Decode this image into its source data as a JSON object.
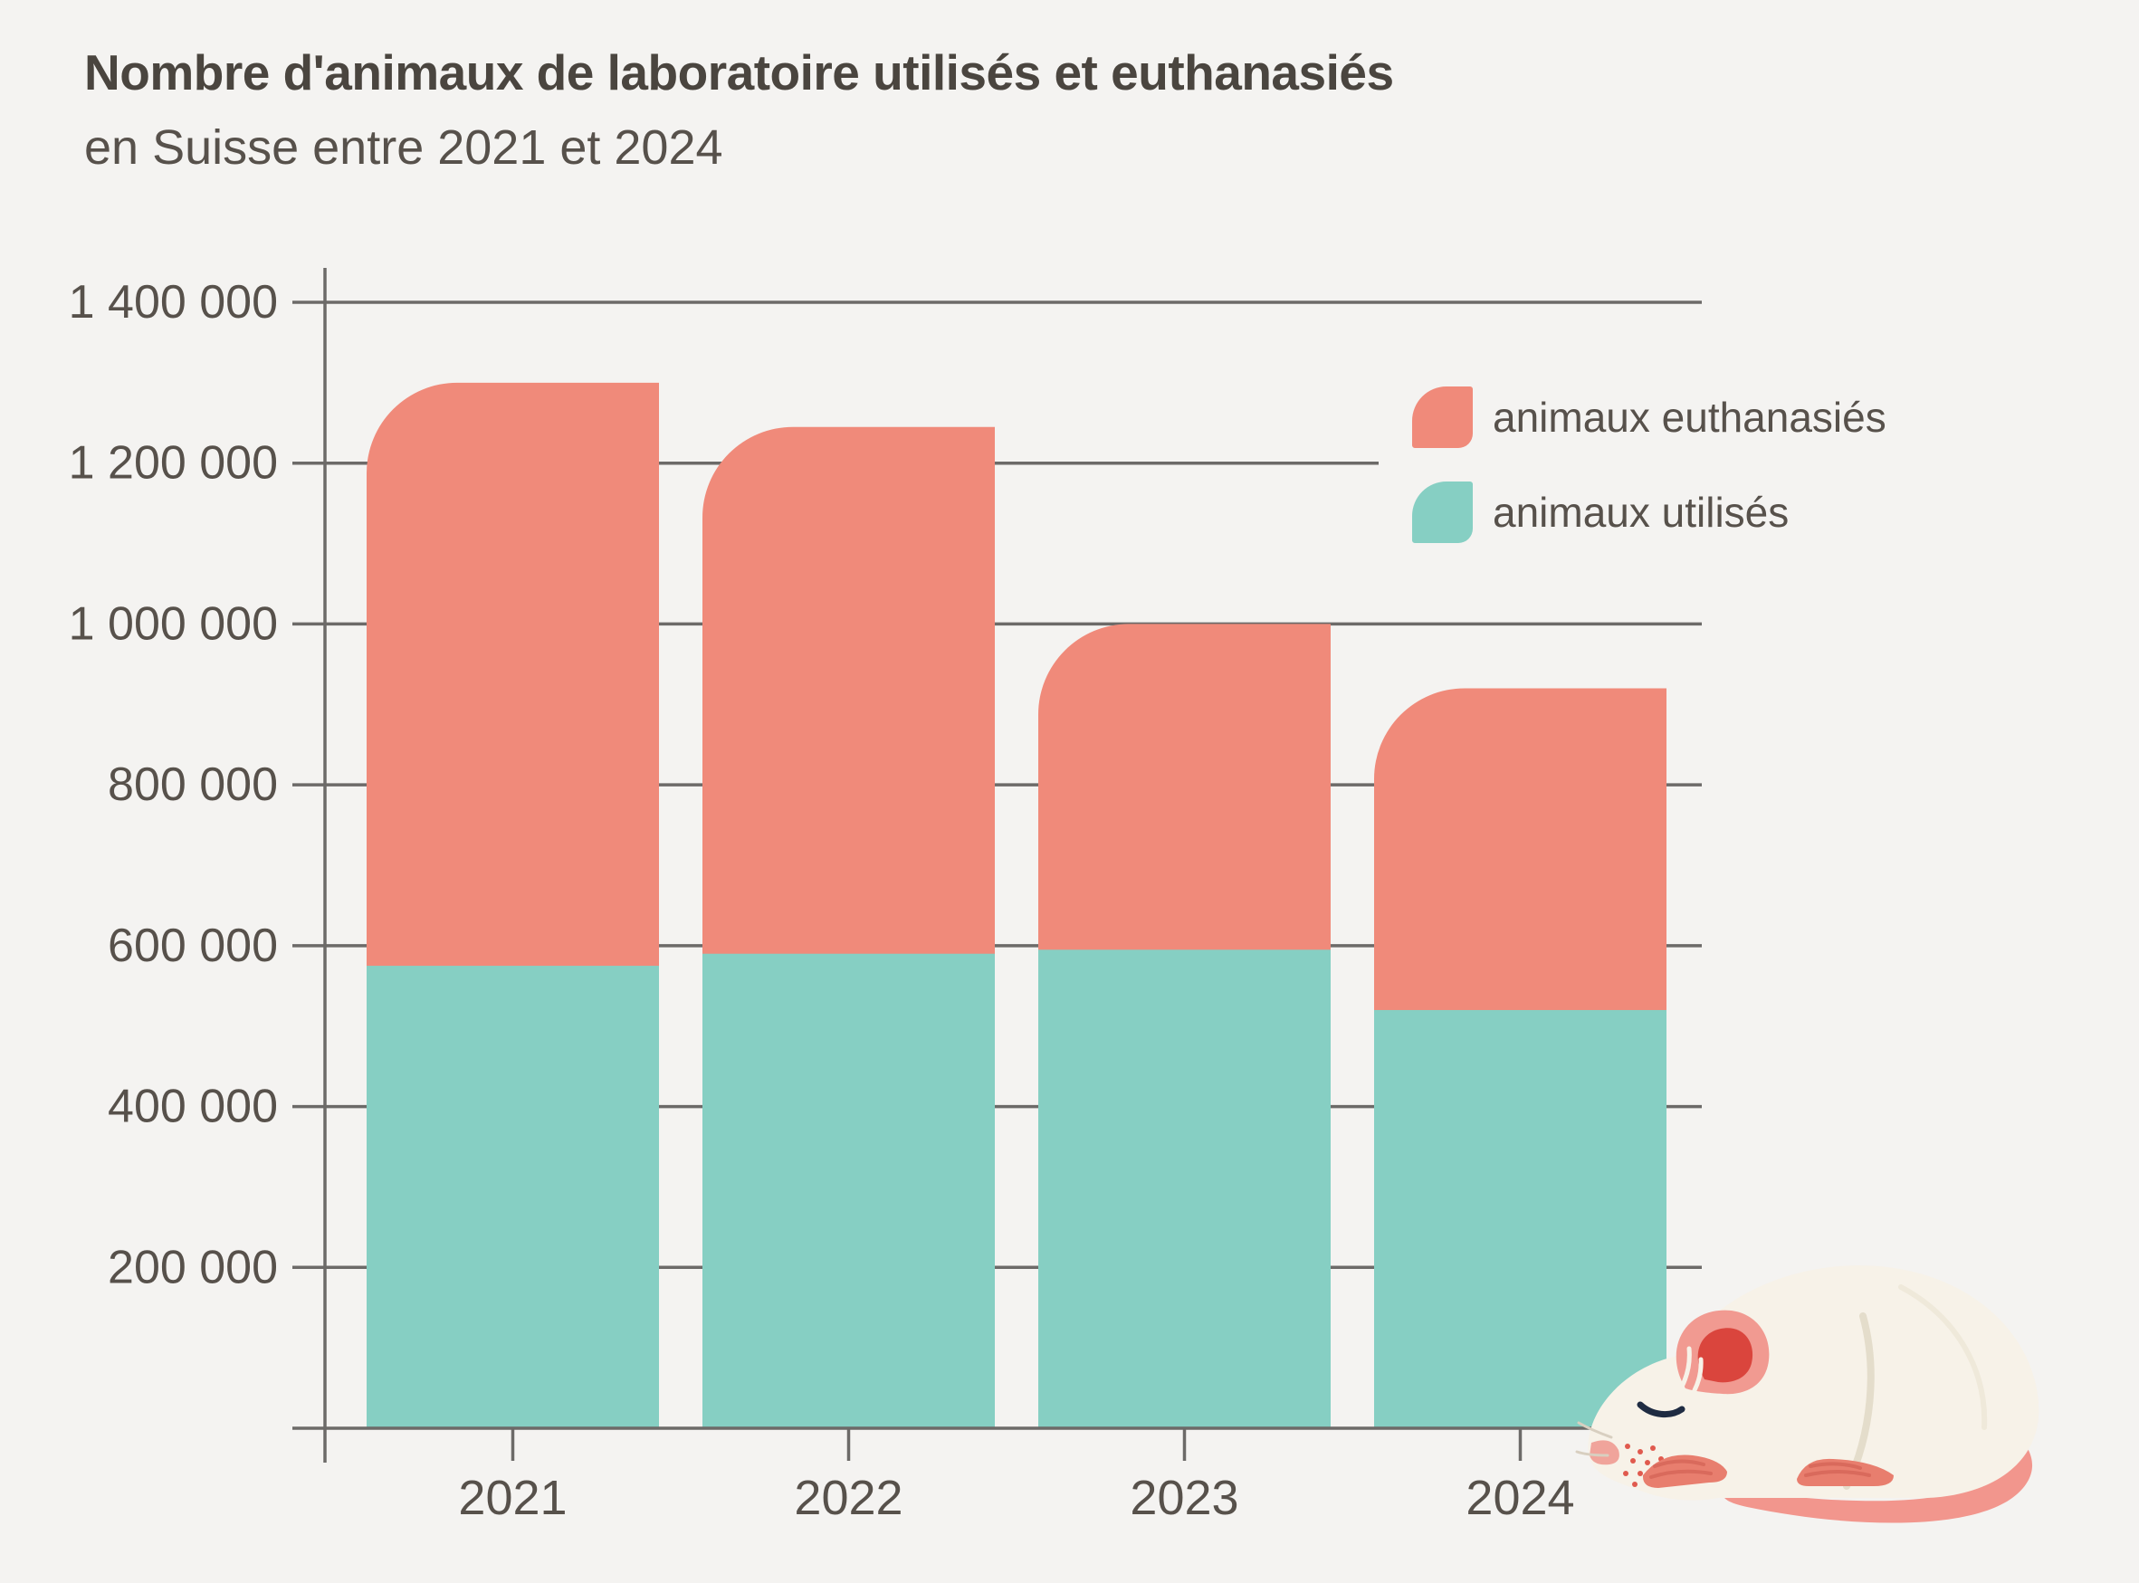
{
  "header": {
    "title": "Nombre d'animaux de laboratoire utilisés et euthanasiés",
    "subtitle": "en Suisse entre 2021 et 2024"
  },
  "legend": {
    "euthanasies_label": "animaux euthanasiés",
    "utilises_label": "animaux utilisés"
  },
  "colors": {
    "euthanasies": "#F08A7A",
    "utilises": "#86CFC3",
    "background": "#F4F3F1",
    "grid": "#6C6A68",
    "axis_text": "#57514B",
    "title_text": "#4A453F"
  },
  "chart_data": {
    "type": "bar",
    "mode": "overlay",
    "title": "Nombre d'animaux de laboratoire utilisés et euthanasiés en Suisse entre 2021 et 2024",
    "categories": [
      "2021",
      "2022",
      "2023",
      "2024"
    ],
    "series": [
      {
        "name": "animaux euthanasiés",
        "color": "#F08A7A",
        "values": [
          1300000,
          1245000,
          1000000,
          920000
        ]
      },
      {
        "name": "animaux utilisés",
        "color": "#86CFC3",
        "values": [
          575000,
          590000,
          595000,
          520000
        ]
      }
    ],
    "xlabel": "",
    "ylabel": "",
    "ylim": [
      0,
      1400000
    ],
    "y_ticks": [
      200000,
      400000,
      600000,
      800000,
      1000000,
      1200000,
      1400000
    ],
    "y_tick_labels": [
      "200 000",
      "400 000",
      "600 000",
      "800 000",
      "1 000 000",
      "1 200 000",
      "1 400 000"
    ],
    "grid": true,
    "legend_position": "top-right"
  }
}
